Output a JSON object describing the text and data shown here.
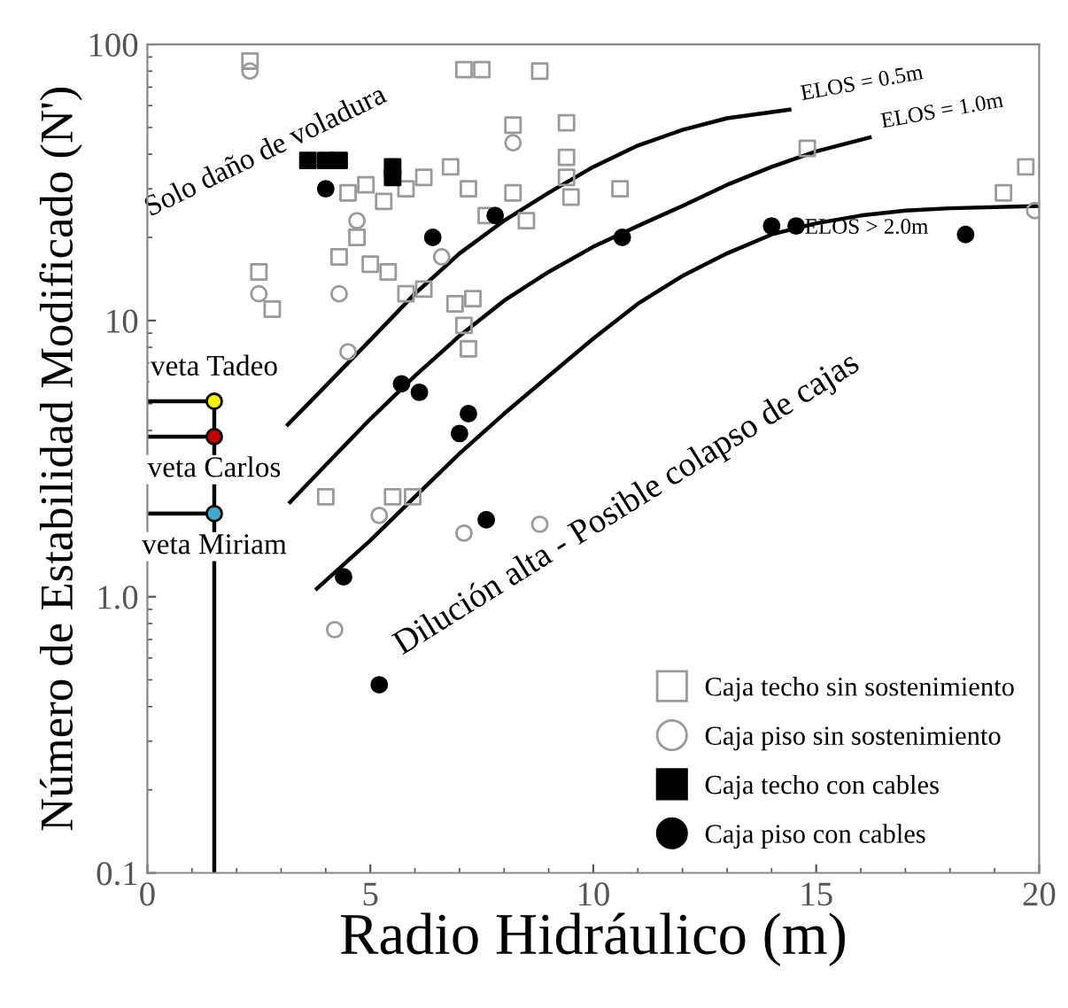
{
  "chart_data": {
    "type": "scatter",
    "xlabel": "Radio Hidráulico (m)",
    "ylabel": "Número de Estabilidad Modificado (N')",
    "log": "y",
    "xlim": [
      0,
      20
    ],
    "ylim": [
      0.1,
      100
    ],
    "xticks": [
      0,
      5,
      10,
      15,
      20
    ],
    "yticks": [
      0.1,
      {
        "value": 1,
        "label": "1.0"
      },
      10,
      100
    ],
    "grid": false,
    "legend": "bottom right",
    "annotations": [
      "Solo daño de voladura",
      "Dilución alta - Posible colapso de cajas"
    ],
    "series": [
      {
        "name": "Caja techo sin sostenimiento",
        "marker": "square",
        "color": "#9a9a9a",
        "x": [
          2.3,
          7.1,
          7.5,
          8.8,
          9.4,
          9.4,
          8.2,
          4.5,
          4.9,
          5.3,
          5.8,
          6.2,
          6.8,
          7.2,
          7.6,
          8.2,
          8.5,
          9.4,
          9.5,
          5.0,
          5.4,
          4.3,
          4.7,
          5.8,
          6.2,
          6.9,
          7.1,
          7.3,
          2.5,
          2.8,
          10.6,
          14.8,
          19.2,
          19.7,
          4.0,
          5.5,
          5.95,
          7.2
        ],
        "values": [
          87,
          81,
          81,
          80,
          52,
          39,
          51,
          29,
          31,
          27,
          30,
          33,
          36,
          30,
          24,
          29,
          23,
          33,
          28,
          16,
          15,
          17,
          20,
          12.5,
          13,
          11.5,
          9.6,
          12,
          15,
          11,
          30,
          42,
          29,
          36,
          2.3,
          2.3,
          2.3,
          7.9
        ]
      },
      {
        "name": "Caja piso sin sostenimiento",
        "marker": "circle",
        "color": "#9a9a9a",
        "x": [
          2.3,
          8.2,
          4.7,
          6.6,
          4.3,
          2.5,
          4.5,
          5.2,
          4.2,
          7.1,
          8.8,
          19.9
        ],
        "values": [
          80,
          44,
          23,
          17,
          12.5,
          12.5,
          7.7,
          1.97,
          0.76,
          1.7,
          1.83,
          25
        ]
      },
      {
        "name": "Caja techo con cables",
        "marker": "square",
        "color": "#000000",
        "x": [
          3.6,
          4.0,
          4.3,
          5.5,
          5.5
        ],
        "values": [
          38,
          38,
          38,
          36,
          33
        ]
      },
      {
        "name": "Caja piso con cables",
        "marker": "circle",
        "color": "#000000",
        "x": [
          4.0,
          6.4,
          7.8,
          10.65,
          14.0,
          14.55,
          18.35,
          5.7,
          6.1,
          7.2,
          7.0,
          7.6,
          4.4,
          5.2
        ],
        "values": [
          30,
          20,
          24,
          20,
          22,
          22,
          20.5,
          5.9,
          5.5,
          4.6,
          3.9,
          1.9,
          1.18,
          0.48
        ]
      },
      {
        "name": "ELOS = 0.5m",
        "type": "line",
        "color": "#000000",
        "x": [
          3.15,
          4,
          5,
          6,
          7,
          8,
          9,
          10,
          11,
          12,
          13,
          14.4
        ],
        "values": [
          4.2,
          5.8,
          8.5,
          12.5,
          17.5,
          23,
          29,
          36,
          43,
          49,
          54,
          58
        ]
      },
      {
        "name": "ELOS = 1.0m",
        "type": "line",
        "color": "#000000",
        "x": [
          3.2,
          4,
          5,
          6,
          7,
          8,
          9,
          10,
          11,
          12,
          13,
          14,
          15,
          16.2
        ],
        "values": [
          2.2,
          3.0,
          4.4,
          6.3,
          8.8,
          11.8,
          15,
          18.5,
          22,
          26,
          31,
          36,
          41,
          46
        ]
      },
      {
        "name": "ELOS > 2.0m",
        "type": "line",
        "color": "#000000",
        "x": [
          3.8,
          5,
          6,
          7,
          8,
          9,
          10,
          11,
          12,
          13,
          14,
          15,
          16,
          17,
          18,
          20
        ],
        "values": [
          1.07,
          1.6,
          2.3,
          3.3,
          4.6,
          6.3,
          8.6,
          11.5,
          14.5,
          17.5,
          20.5,
          22.5,
          24,
          25,
          25.5,
          26
        ]
      },
      {
        "type": "line",
        "color": "#000000",
        "x": [
          0,
          1.5,
          1.5,
          0,
          1.5,
          1.5,
          0,
          1.5,
          1.5
        ],
        "values": [
          5.1,
          5.1,
          3.8,
          3.8,
          3.8,
          2.0,
          2.0,
          2.0,
          0.1
        ]
      },
      {
        "name": "veta Tadeo",
        "marker": "circle",
        "color": "#f2f200",
        "x": [
          1.5
        ],
        "values": [
          5.1
        ]
      },
      {
        "name": "veta Carlos",
        "marker": "circle",
        "color": "#c00000",
        "x": [
          1.5
        ],
        "values": [
          3.8
        ]
      },
      {
        "name": "veta Miriam",
        "marker": "circle",
        "color": "#3fa9c9",
        "x": [
          1.5
        ],
        "values": [
          2.0
        ]
      }
    ]
  }
}
